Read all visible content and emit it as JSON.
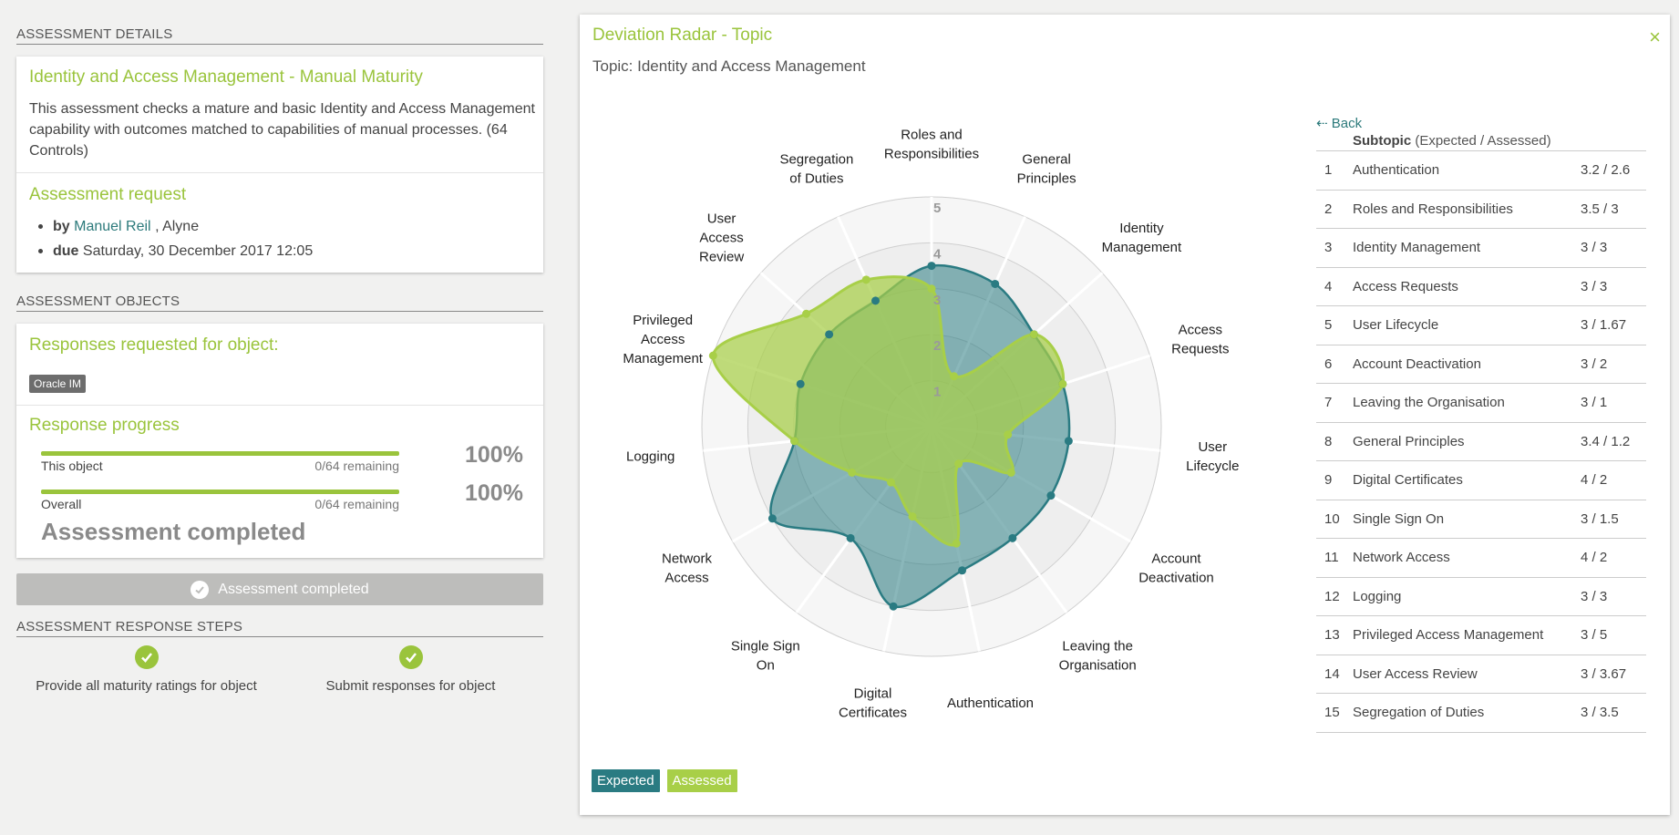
{
  "left": {
    "details_heading": "ASSESSMENT DETAILS",
    "assessment_title": "Identity and Access Management - Manual Maturity",
    "description": "This assessment checks a mature and basic Identity and Access Management capability with outcomes matched to capabilities of manual processes. (64 Controls)",
    "request_heading": "Assessment request",
    "by_label": "by",
    "by_name": "Manuel Reil",
    "by_org": ", Alyne",
    "due_label": "due",
    "due_value": "Saturday, 30 December 2017 12:05",
    "objects_heading": "ASSESSMENT OBJECTS",
    "responses_heading": "Responses requested for object:",
    "object_tag": "Oracle IM",
    "progress_heading": "Response progress",
    "this_object_label": "This object",
    "this_object_remaining": "0/64 remaining",
    "this_object_pct": "100%",
    "overall_label": "Overall",
    "overall_remaining": "0/64 remaining",
    "overall_pct": "100%",
    "this_object_progress": 1.0,
    "overall_progress": 1.0,
    "completed_big": "Assessment completed",
    "completed_button": "Assessment completed",
    "steps_heading": "ASSESSMENT RESPONSE STEPS",
    "step1": "Provide all maturity ratings for object",
    "step2": "Submit responses for object"
  },
  "panel": {
    "title": "Deviation Radar - Topic",
    "subtitle": "Topic: Identity and Access Management",
    "close": "×",
    "back": "Back",
    "table_header_bold": "Subtopic",
    "table_header_rest": " (Expected / Assessed)",
    "legend_expected": "Expected",
    "legend_assessed": "Assessed",
    "colors": {
      "expected": "#2a7b82",
      "assessed": "#a8cf48",
      "accent": "#9ac43c"
    },
    "rows": [
      {
        "n": "1",
        "label": "Authentication",
        "value": "3.2 / 2.6"
      },
      {
        "n": "2",
        "label": "Roles and Responsibilities",
        "value": "3.5 / 3"
      },
      {
        "n": "3",
        "label": "Identity Management",
        "value": "3 / 3"
      },
      {
        "n": "4",
        "label": "Access Requests",
        "value": "3 / 3"
      },
      {
        "n": "5",
        "label": "User Lifecycle",
        "value": "3 / 1.67"
      },
      {
        "n": "6",
        "label": "Account Deactivation",
        "value": "3 / 2"
      },
      {
        "n": "7",
        "label": "Leaving the Organisation",
        "value": "3 / 1"
      },
      {
        "n": "8",
        "label": "General Principles",
        "value": "3.4 / 1.2"
      },
      {
        "n": "9",
        "label": "Digital Certificates",
        "value": "4 / 2"
      },
      {
        "n": "10",
        "label": "Single Sign On",
        "value": "3 / 1.5"
      },
      {
        "n": "11",
        "label": "Network Access",
        "value": "4 / 2"
      },
      {
        "n": "12",
        "label": "Logging",
        "value": "3 / 3"
      },
      {
        "n": "13",
        "label": "Privileged Access Management",
        "value": "3 / 5"
      },
      {
        "n": "14",
        "label": "User Access Review",
        "value": "3 / 3.67"
      },
      {
        "n": "15",
        "label": "Segregation of Duties",
        "value": "3 / 3.5"
      }
    ]
  },
  "chart_data": {
    "type": "radar",
    "title": "Deviation Radar - Topic",
    "rmax": 5,
    "ticks": [
      "1",
      "2",
      "3",
      "4",
      "5"
    ],
    "axes": [
      {
        "lines": [
          "Roles and",
          "Responsibilities"
        ],
        "expected": 3.5,
        "assessed": 3
      },
      {
        "lines": [
          "General",
          "Principles"
        ],
        "expected": 3.4,
        "assessed": 1.2
      },
      {
        "lines": [
          "Identity",
          "Management"
        ],
        "expected": 3,
        "assessed": 3
      },
      {
        "lines": [
          "Access",
          "Requests"
        ],
        "expected": 3,
        "assessed": 3
      },
      {
        "lines": [
          "User",
          "Lifecycle"
        ],
        "expected": 3,
        "assessed": 1.67
      },
      {
        "lines": [
          "Account",
          "Deactivation"
        ],
        "expected": 3,
        "assessed": 2
      },
      {
        "lines": [
          "Leaving the",
          "Organisation"
        ],
        "expected": 3,
        "assessed": 1
      },
      {
        "lines": [
          "Authentication"
        ],
        "expected": 3.2,
        "assessed": 2.6
      },
      {
        "lines": [
          "Digital",
          "Certificates"
        ],
        "expected": 4,
        "assessed": 2
      },
      {
        "lines": [
          "Single Sign",
          "On"
        ],
        "expected": 3,
        "assessed": 1.5
      },
      {
        "lines": [
          "Network",
          "Access"
        ],
        "expected": 4,
        "assessed": 2
      },
      {
        "lines": [
          "Logging"
        ],
        "expected": 3,
        "assessed": 3
      },
      {
        "lines": [
          "Privileged",
          "Access",
          "Management"
        ],
        "expected": 3,
        "assessed": 5
      },
      {
        "lines": [
          "User",
          "Access",
          "Review"
        ],
        "expected": 3,
        "assessed": 3.67
      },
      {
        "lines": [
          "Segregation",
          "of Duties"
        ],
        "expected": 3,
        "assessed": 3.5
      }
    ],
    "series": [
      {
        "name": "Expected"
      },
      {
        "name": "Assessed"
      }
    ]
  }
}
